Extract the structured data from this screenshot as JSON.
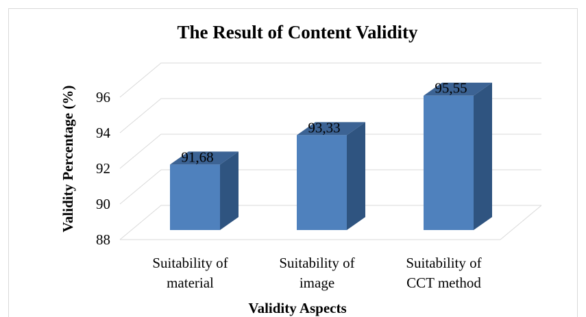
{
  "chart_data": {
    "type": "bar3d",
    "title": "The Result of Content Validity",
    "x_label": "Validity Aspects",
    "y_label": "Validity Percentage (%)",
    "categories": [
      "Suitability of material",
      "Suitability of image",
      "Suitability of CCT method"
    ],
    "values": [
      91.68,
      93.33,
      95.55
    ],
    "value_labels": [
      "91,68",
      "93,33",
      "95,55"
    ],
    "color": "#4f81bd",
    "ylim": [
      88,
      96
    ],
    "yticks": [
      88,
      90,
      92,
      94,
      96
    ],
    "grid": true
  }
}
